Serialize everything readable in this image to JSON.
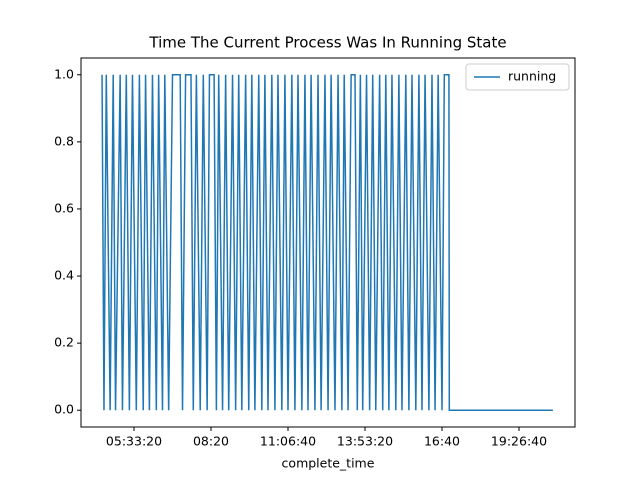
{
  "chart_data": {
    "type": "line",
    "title": "Time The Current Process Was In Running State",
    "x_label": "complete_time",
    "x": [
      15850,
      16100,
      16400,
      16900,
      17300,
      17600,
      18200,
      18500,
      19000,
      19400,
      19800,
      20300,
      20700,
      21200,
      21500,
      22000,
      22400,
      22900,
      23200,
      23700,
      24000,
      24500,
      25000,
      26000,
      26300,
      26700,
      27400,
      27700,
      28100,
      28600,
      29000,
      29500,
      29800,
      30400,
      30700,
      31000,
      31500,
      31900,
      32300,
      32800,
      33200,
      33600,
      34000,
      34500,
      34900,
      35300,
      35700,
      36200,
      36600,
      37000,
      37400,
      37900,
      38300,
      38700,
      39200,
      39600,
      40000,
      40500,
      40900,
      41300,
      41800,
      42200,
      42600,
      43000,
      43500,
      43900,
      44300,
      44800,
      45200,
      45600,
      46100,
      46500,
      47000,
      47300,
      47800,
      48200,
      48700,
      49000,
      49400,
      49700,
      50200,
      50600,
      51000,
      51400,
      51900,
      52300,
      52700,
      53100,
      53500,
      54000,
      54400,
      54800,
      55300,
      55700,
      56100,
      56600,
      57000,
      57400,
      57800,
      58300,
      58700,
      59100,
      59500,
      60000,
      60300,
      60900,
      60950,
      74400
    ],
    "series": [
      {
        "name": "running",
        "color": "#1f77b4",
        "values": [
          1,
          0,
          1,
          0,
          1,
          0,
          1,
          0,
          1,
          0,
          1,
          0,
          1,
          0,
          1,
          0,
          1,
          0,
          1,
          0,
          1,
          0,
          1,
          1,
          0,
          1,
          1,
          0,
          1,
          0,
          1,
          0,
          1,
          1,
          0,
          1,
          0,
          1,
          0,
          1,
          0,
          1,
          0,
          1,
          0,
          1,
          0,
          1,
          0,
          1,
          0,
          1,
          0,
          1,
          0,
          1,
          0,
          1,
          0,
          1,
          0,
          1,
          0,
          1,
          0,
          1,
          0,
          1,
          0,
          1,
          0,
          1,
          0,
          1,
          0,
          1,
          1,
          0,
          1,
          0,
          1,
          0,
          1,
          0,
          1,
          0,
          1,
          0,
          1,
          0,
          1,
          0,
          1,
          0,
          1,
          0,
          1,
          0,
          1,
          0,
          1,
          0,
          1,
          0,
          1,
          1,
          0,
          0
        ]
      }
    ],
    "xlim": [
      13117,
      77273
    ],
    "xticks": [
      {
        "value": 20000,
        "label": "05:33:20"
      },
      {
        "value": 30000,
        "label": "08:20"
      },
      {
        "value": 40000,
        "label": "11:06:40"
      },
      {
        "value": 50000,
        "label": "13:53:20"
      },
      {
        "value": 60000,
        "label": "16:40"
      },
      {
        "value": 70000,
        "label": "19:26:40"
      }
    ],
    "ylim": [
      -0.05,
      1.05
    ],
    "yticks": [
      {
        "value": 0,
        "label": "0.0"
      },
      0.2,
      0.4,
      0.6,
      0.8,
      {
        "value": 1,
        "label": "1.0"
      }
    ],
    "legend": "upper right"
  }
}
